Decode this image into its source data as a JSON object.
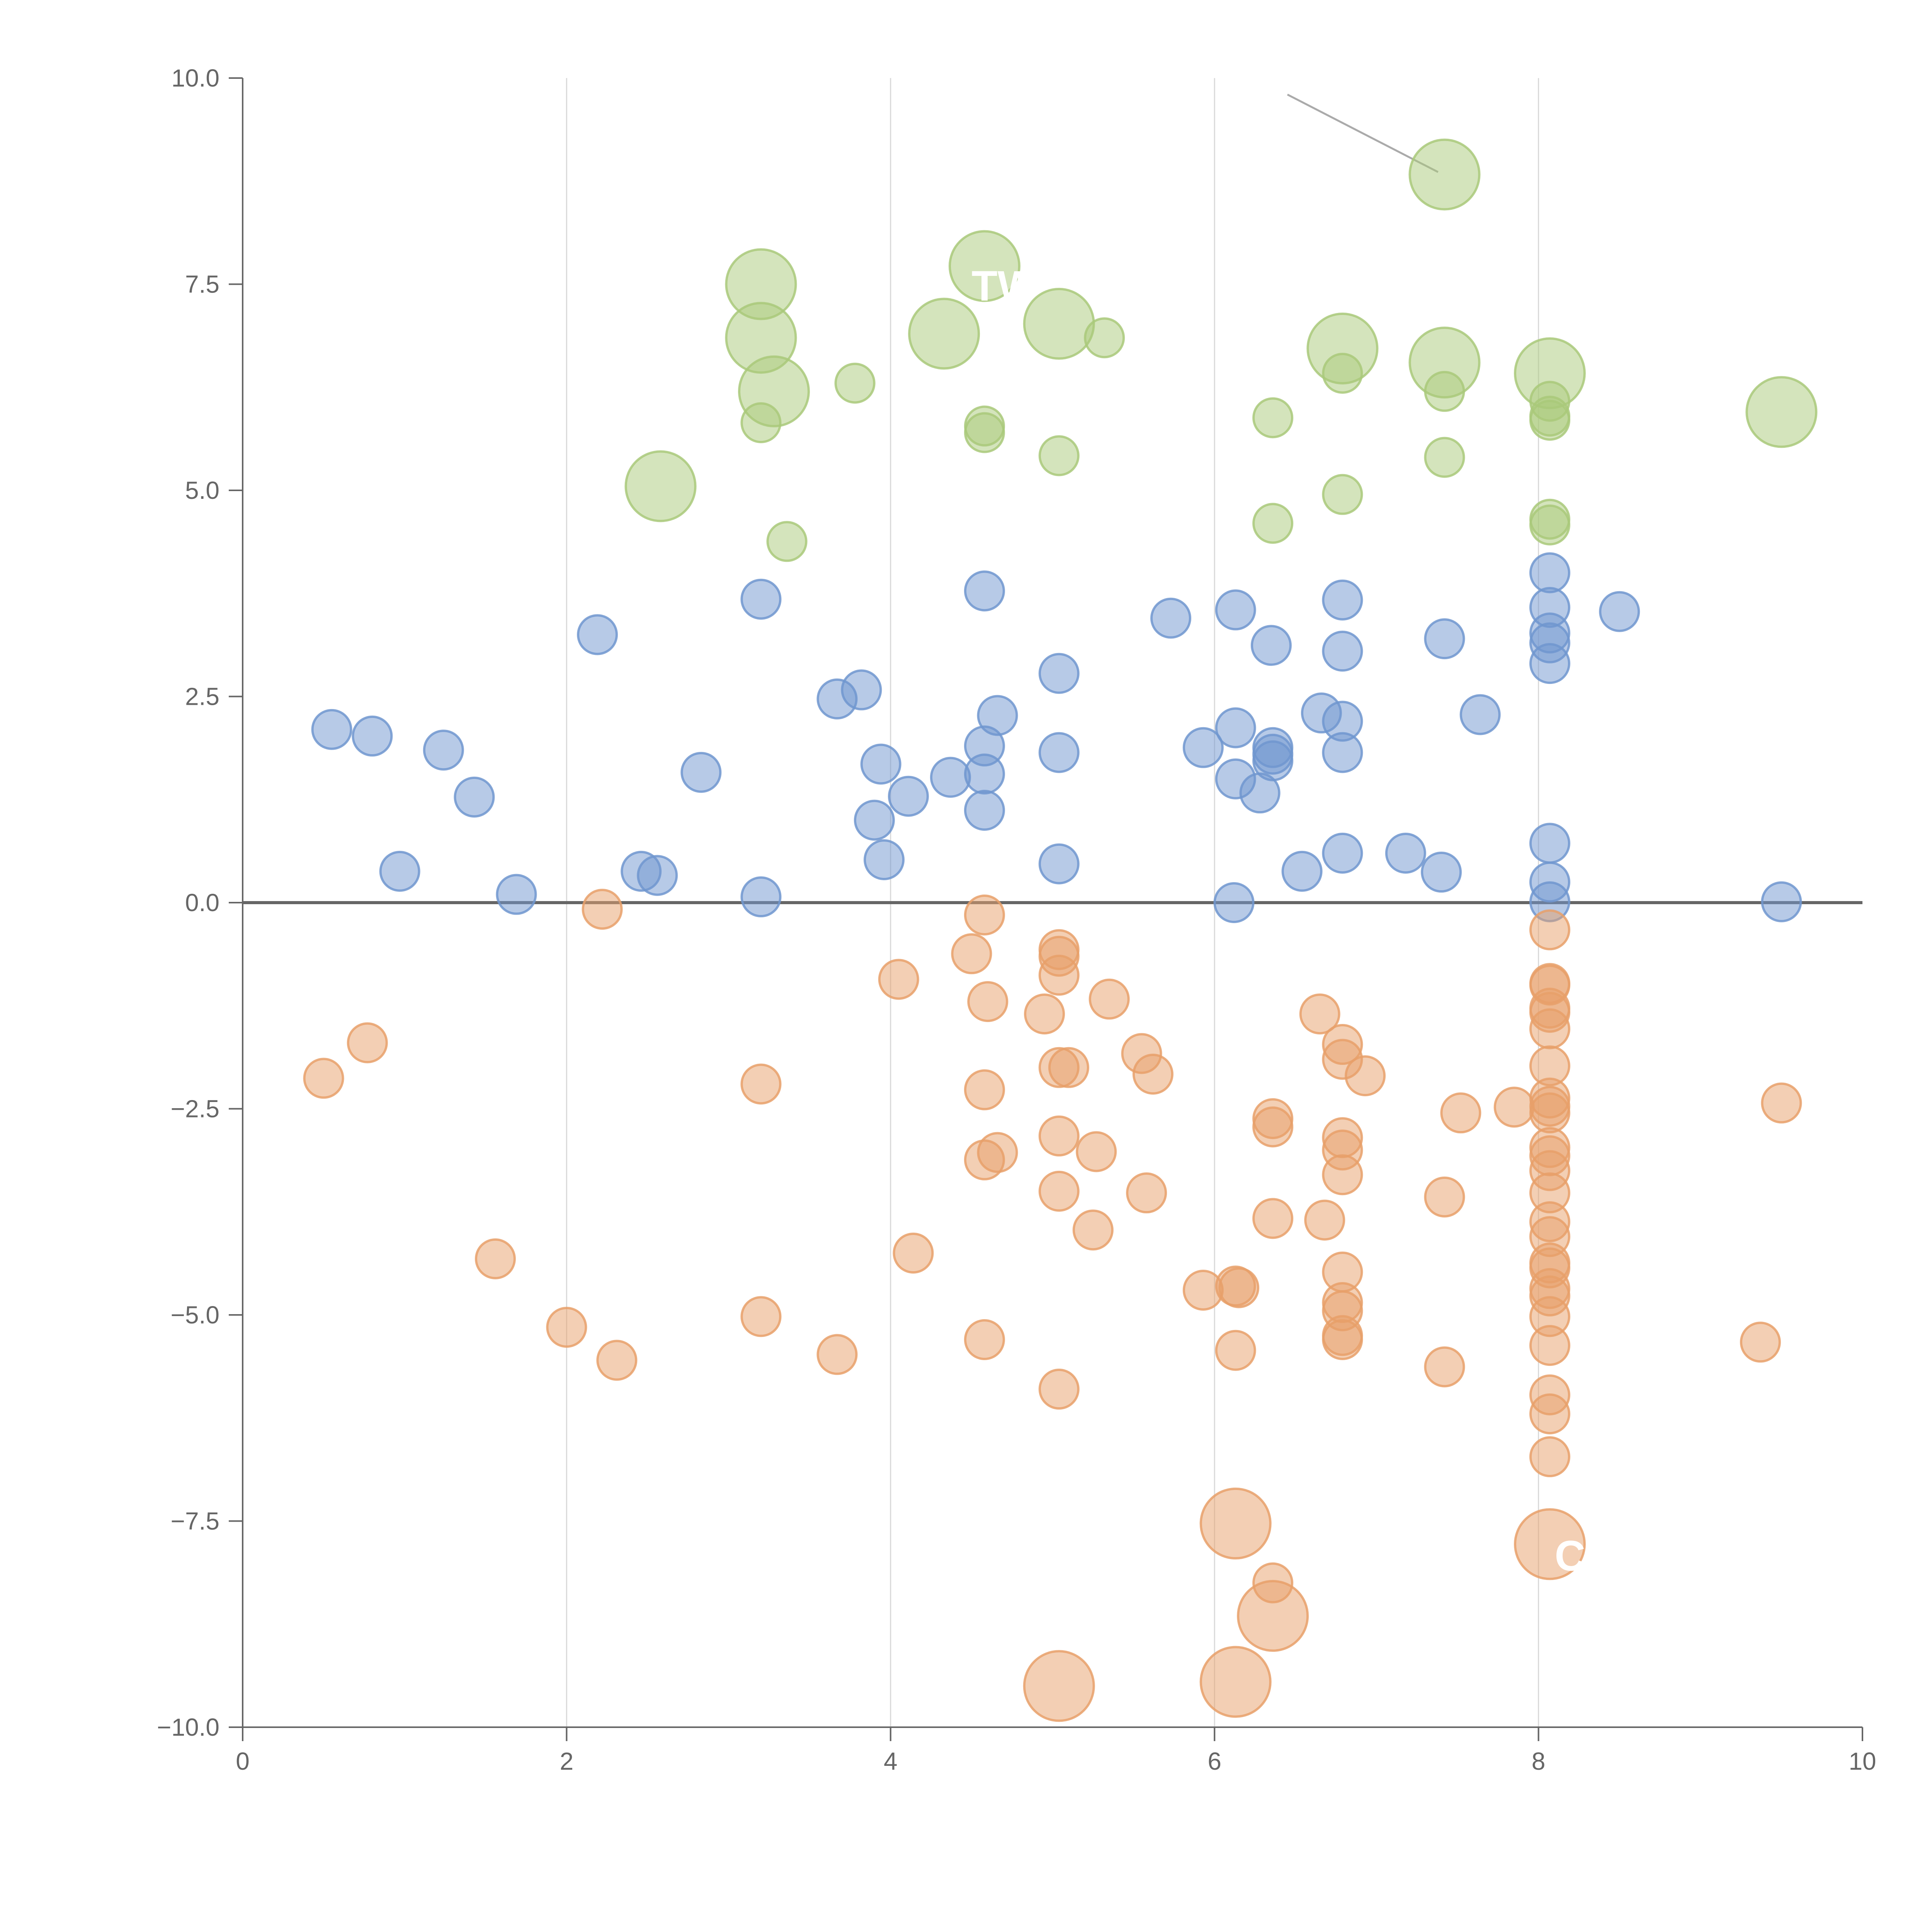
{
  "chart_data": {
    "type": "scatter",
    "title": "",
    "xlabel": "",
    "ylabel": "",
    "xlim": [
      0,
      10
    ],
    "ylim": [
      -10,
      10
    ],
    "x_ticks": [
      0,
      2,
      4,
      6,
      8,
      10
    ],
    "y_ticks": [
      -10,
      -7.5,
      -5,
      -2.5,
      0,
      2.5,
      5,
      7.5,
      10
    ],
    "x_tick_labels": [
      "0",
      "2",
      "4",
      "6",
      "8",
      "10"
    ],
    "y_tick_labels": [
      "−10.0",
      "−7.5",
      "−5.0",
      "−2.5",
      "0.0",
      "2.5",
      "5.0",
      "7.5",
      "10.0"
    ],
    "vertical_grid": true,
    "zero_line": true,
    "legend": "none",
    "colors": {
      "blue": "#7096cf",
      "orange": "#e8a06a",
      "green": "#a9c97a",
      "axis": "#666666",
      "grid": "#d9d9d9",
      "zero_line": "#666666",
      "leader": "#aaaaaa"
    },
    "series": [
      {
        "name": "blue",
        "color": "#7096cf",
        "points": [
          [
            0.55,
            2.1
          ],
          [
            0.8,
            2.02
          ],
          [
            1.24,
            1.85
          ],
          [
            1.43,
            1.28
          ],
          [
            0.97,
            0.38
          ],
          [
            1.69,
            0.1
          ],
          [
            2.19,
            3.25
          ],
          [
            2.46,
            0.38
          ],
          [
            2.56,
            0.33
          ],
          [
            2.83,
            1.58
          ],
          [
            3.2,
            3.68
          ],
          [
            3.2,
            0.07
          ],
          [
            3.67,
            2.47
          ],
          [
            3.82,
            2.58
          ],
          [
            3.9,
            1.0
          ],
          [
            3.94,
            1.68
          ],
          [
            3.96,
            0.52
          ],
          [
            4.11,
            1.29
          ],
          [
            4.37,
            1.52
          ],
          [
            4.58,
            3.78
          ],
          [
            4.58,
            1.9
          ],
          [
            4.58,
            1.56
          ],
          [
            4.58,
            1.12
          ],
          [
            4.66,
            2.27
          ],
          [
            5.04,
            2.78
          ],
          [
            5.04,
            1.82
          ],
          [
            5.04,
            0.47
          ],
          [
            5.73,
            3.45
          ],
          [
            5.93,
            1.88
          ],
          [
            6.13,
            3.55
          ],
          [
            6.13,
            2.12
          ],
          [
            6.13,
            1.5
          ],
          [
            6.12,
            0.0
          ],
          [
            6.28,
            1.33
          ],
          [
            6.35,
            3.12
          ],
          [
            6.36,
            1.88
          ],
          [
            6.36,
            1.8
          ],
          [
            6.36,
            1.72
          ],
          [
            6.54,
            0.38
          ],
          [
            6.66,
            2.3
          ],
          [
            6.79,
            3.67
          ],
          [
            6.79,
            3.05
          ],
          [
            6.79,
            2.2
          ],
          [
            6.79,
            1.82
          ],
          [
            6.79,
            0.6
          ],
          [
            7.18,
            0.6
          ],
          [
            7.42,
            3.2
          ],
          [
            7.4,
            0.37
          ],
          [
            7.64,
            2.28
          ],
          [
            8.07,
            4.0
          ],
          [
            8.07,
            3.58
          ],
          [
            8.07,
            3.27
          ],
          [
            8.07,
            3.15
          ],
          [
            8.07,
            2.9
          ],
          [
            8.07,
            0.72
          ],
          [
            8.07,
            0.25
          ],
          [
            8.07,
            0.01
          ],
          [
            8.5,
            3.53
          ],
          [
            9.5,
            0.01
          ]
        ]
      },
      {
        "name": "orange",
        "color": "#e8a06a",
        "points": [
          [
            0.5,
            -2.13
          ],
          [
            0.77,
            -1.7
          ],
          [
            1.56,
            -4.32
          ],
          [
            2.0,
            -5.15
          ],
          [
            2.22,
            -0.08
          ],
          [
            2.31,
            -5.55
          ],
          [
            3.2,
            -2.2
          ],
          [
            3.2,
            -5.02
          ],
          [
            3.67,
            -5.48
          ],
          [
            4.05,
            -0.93
          ],
          [
            4.14,
            -4.25
          ],
          [
            4.5,
            -0.62
          ],
          [
            4.58,
            -0.15
          ],
          [
            4.6,
            -1.2
          ],
          [
            4.58,
            -2.27
          ],
          [
            4.58,
            -3.12
          ],
          [
            4.66,
            -3.03
          ],
          [
            4.58,
            -5.3
          ],
          [
            4.95,
            -1.35
          ],
          [
            5.04,
            -0.57
          ],
          [
            5.04,
            -0.65
          ],
          [
            5.04,
            -0.88
          ],
          [
            5.04,
            -2.0
          ],
          [
            5.1,
            -2.0
          ],
          [
            5.04,
            -2.83
          ],
          [
            5.04,
            -3.5
          ],
          [
            5.27,
            -3.02
          ],
          [
            5.25,
            -3.97
          ],
          [
            5.04,
            -5.9
          ],
          [
            5.35,
            -1.17
          ],
          [
            5.55,
            -1.83
          ],
          [
            5.62,
            -2.08
          ],
          [
            5.58,
            -3.52
          ],
          [
            5.93,
            -4.7
          ],
          [
            6.13,
            -4.65
          ],
          [
            6.15,
            -4.67
          ],
          [
            6.13,
            -5.43
          ],
          [
            6.36,
            -2.62
          ],
          [
            6.36,
            -2.72
          ],
          [
            6.36,
            -3.83
          ],
          [
            6.36,
            -8.25
          ],
          [
            6.65,
            -1.35
          ],
          [
            6.68,
            -3.85
          ],
          [
            6.79,
            -1.72
          ],
          [
            6.79,
            -1.9
          ],
          [
            6.79,
            -2.85
          ],
          [
            6.79,
            -3.0
          ],
          [
            6.79,
            -3.3
          ],
          [
            6.79,
            -4.48
          ],
          [
            6.79,
            -4.85
          ],
          [
            6.79,
            -4.95
          ],
          [
            6.79,
            -5.25
          ],
          [
            6.79,
            -5.3
          ],
          [
            6.93,
            -2.1
          ],
          [
            7.42,
            -3.57
          ],
          [
            7.42,
            -5.63
          ],
          [
            7.52,
            -2.55
          ],
          [
            7.85,
            -2.48
          ],
          [
            8.07,
            -0.33
          ],
          [
            8.07,
            -0.98
          ],
          [
            8.07,
            -1.0
          ],
          [
            8.07,
            -1.28
          ],
          [
            8.07,
            -1.33
          ],
          [
            8.07,
            -1.53
          ],
          [
            8.07,
            -1.98
          ],
          [
            8.07,
            -2.37
          ],
          [
            8.07,
            -2.47
          ],
          [
            8.07,
            -2.55
          ],
          [
            8.07,
            -2.97
          ],
          [
            8.07,
            -3.07
          ],
          [
            8.07,
            -3.25
          ],
          [
            8.07,
            -3.52
          ],
          [
            8.07,
            -3.87
          ],
          [
            8.07,
            -4.05
          ],
          [
            8.07,
            -4.37
          ],
          [
            8.07,
            -4.43
          ],
          [
            8.07,
            -4.68
          ],
          [
            8.07,
            -4.77
          ],
          [
            8.07,
            -5.02
          ],
          [
            8.07,
            -5.37
          ],
          [
            8.07,
            -5.97
          ],
          [
            8.07,
            -6.2
          ],
          [
            8.07,
            -6.72
          ],
          [
            9.37,
            -5.33
          ],
          [
            9.5,
            -2.43
          ]
        ]
      },
      {
        "name": "green",
        "color": "#a9c97a",
        "points": [
          [
            3.2,
            5.82
          ],
          [
            3.36,
            4.38
          ],
          [
            3.78,
            6.3
          ],
          [
            4.58,
            5.78
          ],
          [
            4.58,
            5.7
          ],
          [
            5.04,
            5.42
          ],
          [
            5.32,
            6.85
          ],
          [
            6.36,
            5.88
          ],
          [
            6.36,
            4.6
          ],
          [
            6.79,
            6.42
          ],
          [
            6.79,
            4.95
          ],
          [
            7.42,
            6.2
          ],
          [
            7.42,
            5.4
          ],
          [
            8.07,
            6.08
          ],
          [
            8.07,
            5.9
          ],
          [
            8.07,
            5.85
          ],
          [
            8.07,
            4.65
          ],
          [
            8.07,
            4.58
          ]
        ]
      }
    ],
    "highlighted_points": [
      {
        "color": "#a9c97a",
        "x": 3.2,
        "y": 7.5
      },
      {
        "color": "#a9c97a",
        "x": 3.2,
        "y": 6.85
      },
      {
        "color": "#a9c97a",
        "x": 3.28,
        "y": 6.2
      },
      {
        "color": "#a9c97a",
        "x": 2.58,
        "y": 5.05
      },
      {
        "color": "#a9c97a",
        "x": 4.33,
        "y": 6.9
      },
      {
        "color": "#a9c97a",
        "x": 4.58,
        "y": 7.72
      },
      {
        "color": "#a9c97a",
        "x": 5.04,
        "y": 7.02
      },
      {
        "color": "#a9c97a",
        "x": 6.79,
        "y": 6.72
      },
      {
        "color": "#a9c97a",
        "x": 7.42,
        "y": 8.83
      },
      {
        "color": "#a9c97a",
        "x": 7.42,
        "y": 6.55
      },
      {
        "color": "#a9c97a",
        "x": 8.07,
        "y": 6.42
      },
      {
        "color": "#a9c97a",
        "x": 9.5,
        "y": 5.95
      },
      {
        "color": "#e8a06a",
        "x": 6.13,
        "y": -7.53
      },
      {
        "color": "#e8a06a",
        "x": 8.07,
        "y": -7.78
      },
      {
        "color": "#e8a06a",
        "x": 6.36,
        "y": -8.65
      },
      {
        "color": "#e8a06a",
        "x": 5.04,
        "y": -9.5
      },
      {
        "color": "#e8a06a",
        "x": 6.13,
        "y": -9.45
      }
    ],
    "annotations": [
      {
        "text": "TW",
        "x": 4.5,
        "y": 7.3
      },
      {
        "text": "C",
        "x": 8.1,
        "y": -8.1
      }
    ],
    "leader_lines": [
      [
        6.45,
        9.8,
        7.38,
        8.86
      ]
    ]
  }
}
